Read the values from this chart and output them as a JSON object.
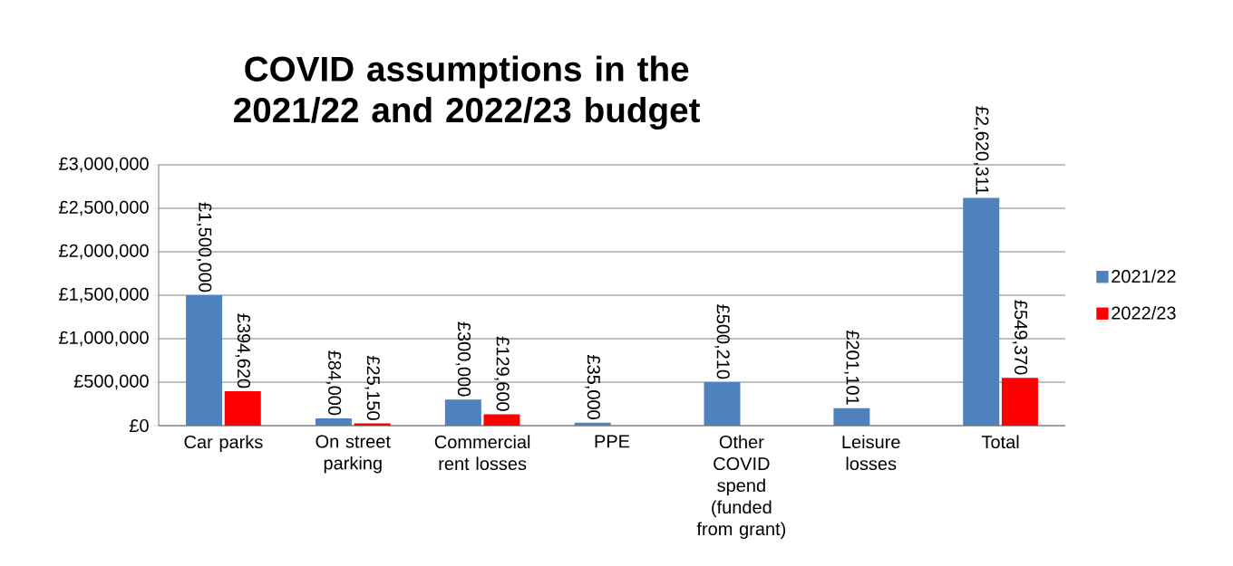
{
  "chart_data": {
    "type": "bar",
    "title": "COVID assumptions in the 2021/22 and 2022/23 budget",
    "categories": [
      "Car parks",
      "On street parking",
      "Commercial rent losses",
      "PPE",
      "Other COVID spend (funded from grant)",
      "Leisure losses",
      "Total"
    ],
    "series": [
      {
        "name": "2021/22",
        "color": "#4f81bd",
        "values": [
          1500000,
          84000,
          300000,
          35000,
          500210,
          201101,
          2620311
        ],
        "value_labels": [
          "£1,500,000",
          "£84,000",
          "£300,000",
          "£35,000",
          "£500,210",
          "£201,101",
          "£2,620,311"
        ]
      },
      {
        "name": "2022/23",
        "color": "#ff0000",
        "values": [
          394620,
          25150,
          129600,
          null,
          null,
          null,
          549370
        ],
        "value_labels": [
          "£394,620",
          "£25,150",
          "£129,600",
          null,
          null,
          null,
          "£549,370"
        ]
      }
    ],
    "ylim": [
      0,
      3000000
    ],
    "yticks": [
      {
        "value": 0,
        "label": "£0"
      },
      {
        "value": 500000,
        "label": "£500,000"
      },
      {
        "value": 1000000,
        "label": "£1,000,000"
      },
      {
        "value": 1500000,
        "label": "£1,500,000"
      },
      {
        "value": 2000000,
        "label": "£2,000,000"
      },
      {
        "value": 2500000,
        "label": "£2,500,000"
      },
      {
        "value": 3000000,
        "label": "£3,000,000"
      }
    ],
    "grid": "y",
    "legend": "right"
  }
}
